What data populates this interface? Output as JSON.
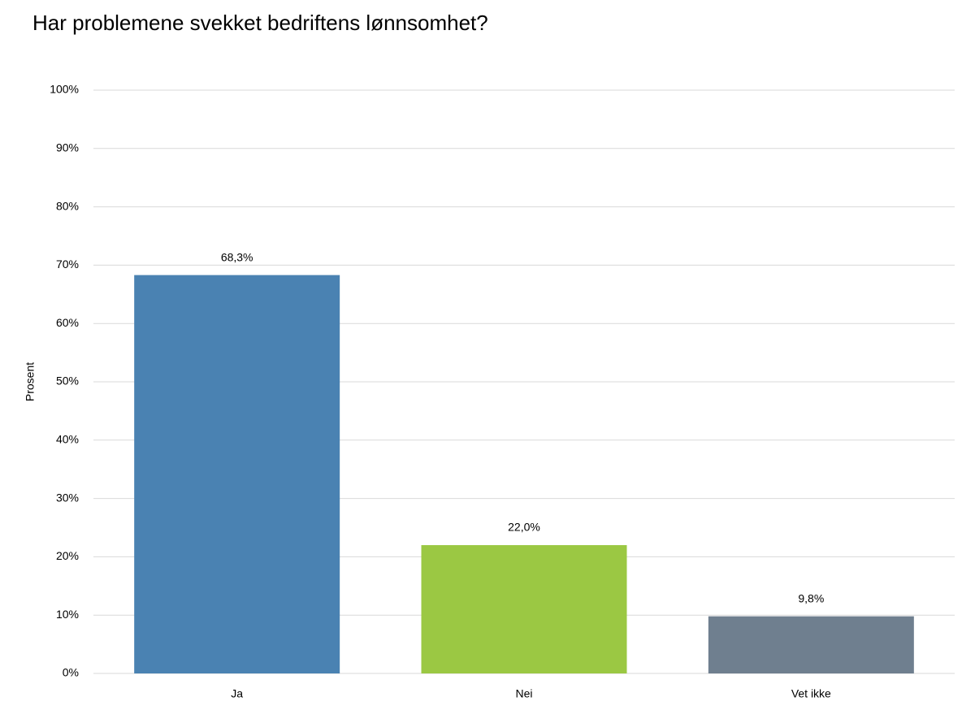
{
  "chart_data": {
    "type": "bar",
    "title": "Har problemene svekket bedriftens lønnsomhet?",
    "y_label": "Prosent",
    "categories": [
      "Ja",
      "Nei",
      "Vet ikke"
    ],
    "values": [
      68.3,
      22.0,
      9.8
    ],
    "value_labels": [
      "68,3%",
      "22,0%",
      "9,8%"
    ],
    "colors": [
      "#4a82b2",
      "#9bc843",
      "#6f7f8f"
    ],
    "ylim": [
      0,
      100
    ],
    "yticks": [
      {
        "value": 0,
        "label": "0%"
      },
      {
        "value": 10,
        "label": "10%"
      },
      {
        "value": 20,
        "label": "20%"
      },
      {
        "value": 30,
        "label": "30%"
      },
      {
        "value": 40,
        "label": "40%"
      },
      {
        "value": 50,
        "label": "50%"
      },
      {
        "value": 60,
        "label": "60%"
      },
      {
        "value": 70,
        "label": "70%"
      },
      {
        "value": 80,
        "label": "80%"
      },
      {
        "value": 90,
        "label": "90%"
      },
      {
        "value": 100,
        "label": "100%"
      }
    ],
    "grid": true
  }
}
